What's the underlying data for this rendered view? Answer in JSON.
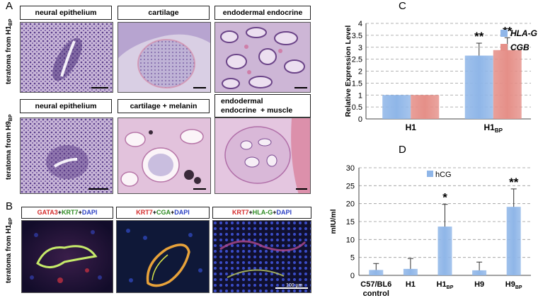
{
  "panel_labels": {
    "A": "A",
    "B": "B",
    "C": "C",
    "D": "D"
  },
  "panel_a": {
    "row1_label": "teratoma from H1",
    "row1_sub": "BP",
    "row2_label": "teratoma from H9",
    "row2_sub": "BP",
    "row1_titles": [
      "neural epithelium",
      "cartilage",
      "endodermal endocrine"
    ],
    "row2_titles": [
      "neural epithelium",
      "cartilage + melanin"
    ],
    "row2_title3_line1": "endodermal",
    "row2_title3_line2": "endocrine",
    "row2_title3_suffix": "+ muscle"
  },
  "panel_b": {
    "row_label": "teratoma from H1",
    "row_sub": "BP",
    "stain_titles": [
      [
        {
          "t": "GATA3",
          "c": "#d42a2a"
        },
        {
          "t": " + ",
          "c": "#000"
        },
        {
          "t": "KRT7",
          "c": "#2e8b22"
        },
        {
          "t": " + ",
          "c": "#000"
        },
        {
          "t": "DAPI",
          "c": "#2a3fc4"
        }
      ],
      [
        {
          "t": "KRT7",
          "c": "#d42a2a"
        },
        {
          "t": " + ",
          "c": "#000"
        },
        {
          "t": "CGA",
          "c": "#2e8b22"
        },
        {
          "t": " + ",
          "c": "#000"
        },
        {
          "t": "DAPI",
          "c": "#2a3fc4"
        }
      ],
      [
        {
          "t": "KRT7",
          "c": "#d42a2a"
        },
        {
          "t": " + ",
          "c": "#000"
        },
        {
          "t": "HLA-G",
          "c": "#2e8b22"
        },
        {
          "t": " + ",
          "c": "#000"
        },
        {
          "t": "DAPI",
          "c": "#2a3fc4"
        }
      ]
    ],
    "scale_bar_label": "100 µm"
  },
  "chart_data": [
    {
      "type": "bar",
      "panel": "C",
      "ylabel": "Relative Expression Level",
      "ylim": [
        0,
        4
      ],
      "yticks": [
        "0",
        "0.5",
        "1",
        "1.5",
        "2",
        "2.5",
        "3",
        "3.5",
        "4"
      ],
      "categories": [
        "H1",
        "H1"
      ],
      "category_subs": [
        "",
        "BP"
      ],
      "series": [
        {
          "name": "HLA-G",
          "values": [
            1.0,
            2.65
          ],
          "errors": [
            0.0,
            0.52
          ],
          "color": "#8fb6e8"
        },
        {
          "name": "CGB",
          "values": [
            1.0,
            2.88
          ],
          "errors": [
            0.0,
            0.52
          ],
          "color": "#e58f88"
        }
      ],
      "annotations": [
        "",
        "**"
      ],
      "annotations_cgb": [
        "",
        "**"
      ],
      "grid": true,
      "legend": "top-right"
    },
    {
      "type": "bar",
      "panel": "D",
      "ylabel": "mIU/ml",
      "ylim": [
        0,
        30
      ],
      "yticks": [
        "0",
        "5",
        "10",
        "15",
        "20",
        "25",
        "30"
      ],
      "categories": [
        "C57/BL6",
        "H1",
        "H1",
        "H9",
        "H9"
      ],
      "category_subs": [
        "",
        "",
        "BP",
        "",
        "BP"
      ],
      "category_line2": [
        "control",
        "",
        "",
        "",
        ""
      ],
      "series": [
        {
          "name": "hCG",
          "values": [
            1.5,
            1.8,
            13.6,
            1.4,
            19.1
          ],
          "errors": [
            1.8,
            2.9,
            6.2,
            2.3,
            5.0
          ],
          "color": "#8fb6e8"
        }
      ],
      "annotations": [
        "",
        "",
        "*",
        "",
        "**"
      ],
      "grid": true,
      "legend": "top-left"
    }
  ]
}
